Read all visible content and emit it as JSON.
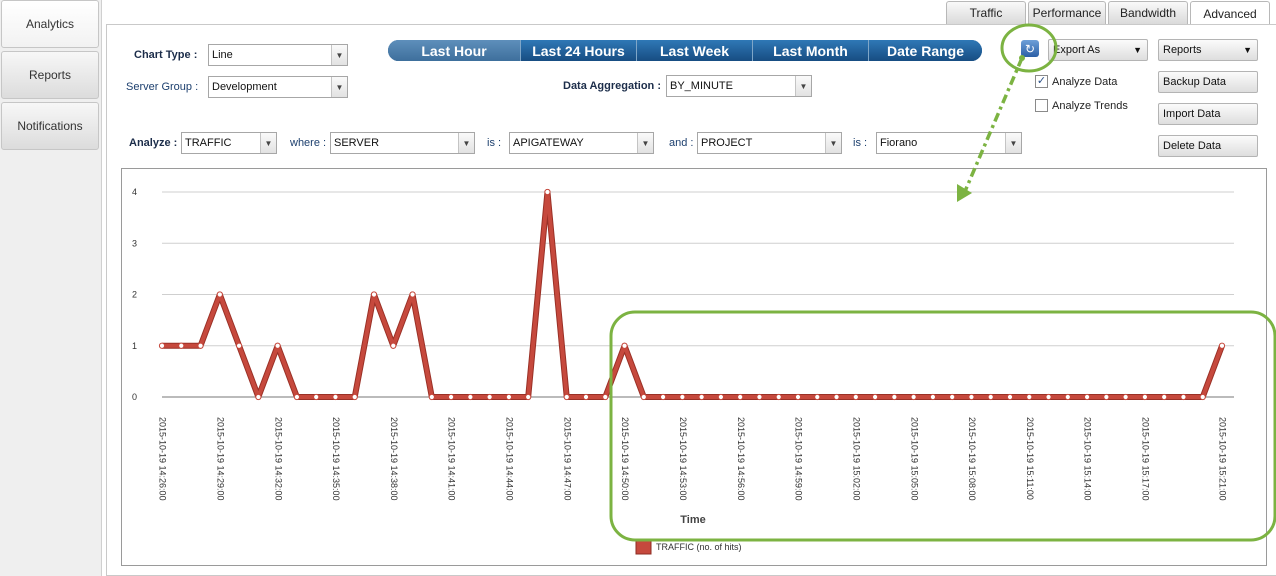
{
  "nav": {
    "items": [
      {
        "label": "Analytics",
        "active": true
      },
      {
        "label": "Reports",
        "active": false
      },
      {
        "label": "Notifications",
        "active": false
      }
    ]
  },
  "tabs": [
    {
      "label": "Traffic",
      "active": false
    },
    {
      "label": "Performance",
      "active": false
    },
    {
      "label": "Bandwidth",
      "active": false
    },
    {
      "label": "Advanced",
      "active": true
    }
  ],
  "controls": {
    "chart_type_label": "Chart Type :",
    "chart_type_value": "Line",
    "server_group_label": "Server Group :",
    "server_group_value": "Development",
    "data_aggregation_label": "Data Aggregation :",
    "data_aggregation_value": "BY_MINUTE",
    "export_as": "Export As",
    "reports": "Reports",
    "analyze_data_label": "Analyze Data",
    "analyze_data_checked": true,
    "analyze_trends_label": "Analyze Trends",
    "analyze_trends_checked": false,
    "backup_data": "Backup Data",
    "import_data": "Import Data",
    "delete_data": "Delete Data"
  },
  "time_range": [
    "Last Hour",
    "Last 24 Hours",
    "Last Week",
    "Last Month",
    "Date Range"
  ],
  "analyze": {
    "label": "Analyze :",
    "value": "TRAFFIC",
    "where_label": "where :",
    "where_value": "SERVER",
    "is_label": "is :",
    "is_value": "APIGATEWAY",
    "and_label": "and :",
    "and_value": "PROJECT",
    "is2_label": "is :",
    "is2_value": "Fiorano"
  },
  "colors": {
    "series": "#c6493d",
    "highlight": "#7cb342",
    "range_bar": "#1f5c94"
  },
  "chart_data": {
    "type": "line",
    "xlabel": "Time",
    "ylabel": "",
    "ylim": [
      0,
      4
    ],
    "yticks": [
      0,
      1,
      2,
      3,
      4
    ],
    "grid": true,
    "legend": "bottom",
    "x": [
      "2015-10-19 14:26:00",
      "2015-10-19 14:27:00",
      "2015-10-19 14:28:00",
      "2015-10-19 14:29:00",
      "2015-10-19 14:30:00",
      "2015-10-19 14:31:00",
      "2015-10-19 14:32:00",
      "2015-10-19 14:33:00",
      "2015-10-19 14:34:00",
      "2015-10-19 14:35:00",
      "2015-10-19 14:36:00",
      "2015-10-19 14:37:00",
      "2015-10-19 14:38:00",
      "2015-10-19 14:39:00",
      "2015-10-19 14:40:00",
      "2015-10-19 14:41:00",
      "2015-10-19 14:42:00",
      "2015-10-19 14:43:00",
      "2015-10-19 14:44:00",
      "2015-10-19 14:45:00",
      "2015-10-19 14:46:00",
      "2015-10-19 14:47:00",
      "2015-10-19 14:48:00",
      "2015-10-19 14:49:00",
      "2015-10-19 14:50:00",
      "2015-10-19 14:51:00",
      "2015-10-19 14:52:00",
      "2015-10-19 14:53:00",
      "2015-10-19 14:54:00",
      "2015-10-19 14:55:00",
      "2015-10-19 14:56:00",
      "2015-10-19 14:57:00",
      "2015-10-19 14:58:00",
      "2015-10-19 14:59:00",
      "2015-10-19 15:00:00",
      "2015-10-19 15:01:00",
      "2015-10-19 15:02:00",
      "2015-10-19 15:03:00",
      "2015-10-19 15:04:00",
      "2015-10-19 15:05:00",
      "2015-10-19 15:06:00",
      "2015-10-19 15:07:00",
      "2015-10-19 15:08:00",
      "2015-10-19 15:09:00",
      "2015-10-19 15:10:00",
      "2015-10-19 15:11:00",
      "2015-10-19 15:12:00",
      "2015-10-19 15:13:00",
      "2015-10-19 15:14:00",
      "2015-10-19 15:15:00",
      "2015-10-19 15:16:00",
      "2015-10-19 15:17:00",
      "2015-10-19 15:18:00",
      "2015-10-19 15:19:00",
      "2015-10-19 15:20:00",
      "2015-10-19 15:21:00"
    ],
    "x_tick_labels": [
      "2015-10-19 14:26:00",
      "2015-10-19 14:29:00",
      "2015-10-19 14:32:00",
      "2015-10-19 14:35:00",
      "2015-10-19 14:38:00",
      "2015-10-19 14:41:00",
      "2015-10-19 14:44:00",
      "2015-10-19 14:47:00",
      "2015-10-19 14:50:00",
      "2015-10-19 14:53:00",
      "2015-10-19 14:56:00",
      "2015-10-19 14:59:00",
      "2015-10-19 15:02:00",
      "2015-10-19 15:05:00",
      "2015-10-19 15:08:00",
      "2015-10-19 15:11:00",
      "2015-10-19 15:14:00",
      "2015-10-19 15:17:00",
      "2015-10-19 15:21:00"
    ],
    "series": [
      {
        "name": "TRAFFIC (no. of hits)",
        "values": [
          1,
          1,
          1,
          2,
          1,
          0,
          1,
          0,
          0,
          0,
          0,
          2,
          1,
          2,
          0,
          0,
          0,
          0,
          0,
          0,
          4,
          0,
          0,
          0,
          1,
          0,
          0,
          0,
          0,
          0,
          0,
          0,
          0,
          0,
          0,
          0,
          0,
          0,
          0,
          0,
          0,
          0,
          0,
          0,
          0,
          0,
          0,
          0,
          0,
          0,
          0,
          0,
          0,
          0,
          0,
          1
        ]
      }
    ]
  }
}
